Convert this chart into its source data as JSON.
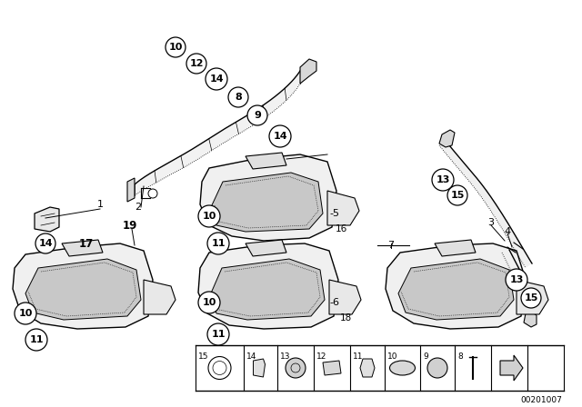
{
  "bg_color": "#ffffff",
  "part_number": "00201007",
  "figure_size": [
    6.4,
    4.48
  ],
  "dpi": 100,
  "line_color": "#000000"
}
